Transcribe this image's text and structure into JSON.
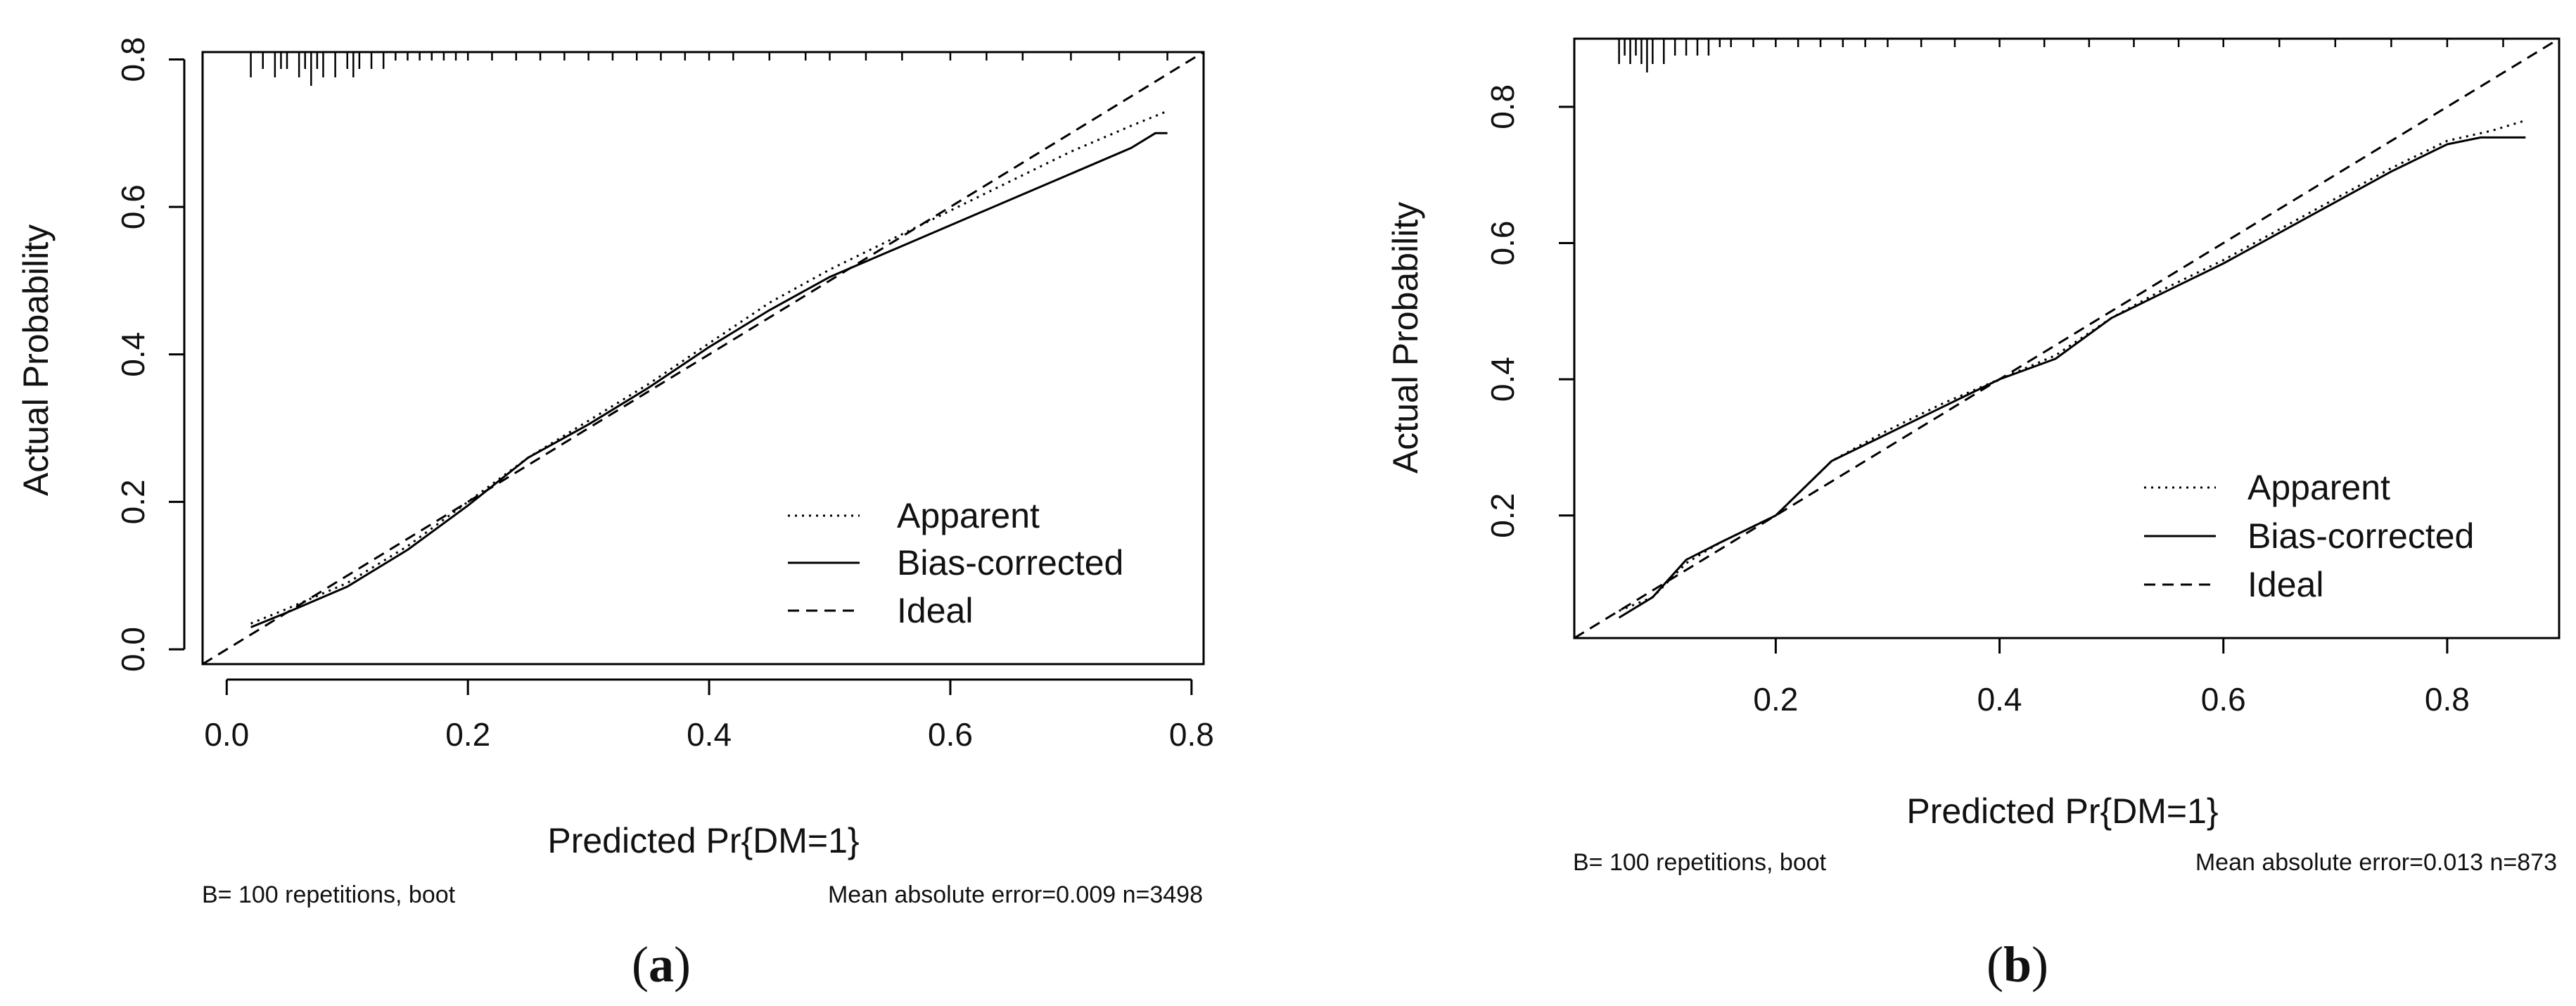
{
  "chart_data": [
    {
      "panel": "a",
      "type": "line",
      "xlabel": "Predicted Pr{DM=1}",
      "ylabel": "Actual Probability",
      "xlim": [
        -0.02,
        0.81
      ],
      "ylim": [
        -0.02,
        0.81
      ],
      "xticks": [
        "0.0",
        "0.2",
        "0.4",
        "0.6",
        "0.8"
      ],
      "yticks": [
        "0.0",
        "0.2",
        "0.4",
        "0.6",
        "0.8"
      ],
      "grid": false,
      "legend_position": "bottom-right",
      "footer_left": "B= 100 repetitions, boot",
      "footer_right": "Mean absolute error=0.009 n=3498",
      "series": [
        {
          "name": "Apparent",
          "style": "dotted",
          "x": [
            0.02,
            0.05,
            0.1,
            0.15,
            0.2,
            0.25,
            0.3,
            0.35,
            0.4,
            0.45,
            0.5,
            0.55,
            0.6,
            0.65,
            0.7,
            0.75,
            0.78
          ],
          "y": [
            0.035,
            0.055,
            0.09,
            0.14,
            0.2,
            0.26,
            0.31,
            0.36,
            0.415,
            0.47,
            0.515,
            0.555,
            0.595,
            0.635,
            0.675,
            0.71,
            0.73
          ]
        },
        {
          "name": "Bias-corrected",
          "style": "solid",
          "x": [
            0.02,
            0.05,
            0.1,
            0.15,
            0.2,
            0.25,
            0.3,
            0.35,
            0.4,
            0.45,
            0.5,
            0.55,
            0.6,
            0.65,
            0.7,
            0.75,
            0.77,
            0.78
          ],
          "y": [
            0.03,
            0.05,
            0.085,
            0.135,
            0.195,
            0.26,
            0.305,
            0.355,
            0.41,
            0.46,
            0.505,
            0.54,
            0.575,
            0.61,
            0.645,
            0.68,
            0.7,
            0.7
          ]
        },
        {
          "name": "Ideal",
          "style": "dashed",
          "x": [
            -0.02,
            0.81
          ],
          "y": [
            -0.02,
            0.81
          ]
        }
      ],
      "rug": [
        0.02,
        0.03,
        0.04,
        0.045,
        0.05,
        0.06,
        0.065,
        0.07,
        0.075,
        0.08,
        0.09,
        0.1,
        0.105,
        0.11,
        0.12,
        0.13,
        0.14,
        0.15,
        0.16,
        0.17,
        0.18,
        0.19,
        0.2,
        0.22,
        0.24,
        0.26,
        0.28,
        0.3,
        0.32,
        0.34,
        0.36,
        0.38,
        0.4,
        0.42,
        0.45,
        0.48,
        0.5,
        0.53,
        0.56,
        0.6,
        0.63,
        0.66,
        0.7,
        0.74,
        0.78
      ],
      "rug_heights": [
        3,
        2,
        3,
        2,
        2,
        3,
        2,
        4,
        2,
        3,
        3,
        2,
        3,
        2,
        2,
        2,
        1,
        1,
        1,
        1,
        1,
        1,
        1,
        1,
        1,
        1,
        1,
        1,
        1,
        1,
        1,
        1,
        1,
        1,
        1,
        1,
        1,
        1,
        1,
        1,
        1,
        1,
        1,
        1,
        1
      ]
    },
    {
      "panel": "b",
      "type": "line",
      "xlabel": "Predicted Pr{DM=1}",
      "ylabel": "Actual Probability",
      "xlim": [
        0.02,
        0.9
      ],
      "ylim": [
        0.02,
        0.9
      ],
      "xticks": [
        "0.2",
        "0.4",
        "0.6",
        "0.8"
      ],
      "yticks": [
        "0.2",
        "0.4",
        "0.6",
        "0.8"
      ],
      "grid": false,
      "legend_position": "bottom-right",
      "footer_left": "B= 100 repetitions, boot",
      "footer_right": "Mean absolute error=0.013 n=873",
      "series": [
        {
          "name": "Apparent",
          "style": "dotted",
          "x": [
            0.06,
            0.09,
            0.12,
            0.15,
            0.2,
            0.25,
            0.3,
            0.35,
            0.4,
            0.45,
            0.5,
            0.55,
            0.6,
            0.65,
            0.7,
            0.75,
            0.8,
            0.84,
            0.87
          ],
          "y": [
            0.06,
            0.08,
            0.13,
            0.16,
            0.2,
            0.28,
            0.325,
            0.365,
            0.4,
            0.435,
            0.49,
            0.535,
            0.575,
            0.62,
            0.665,
            0.71,
            0.75,
            0.765,
            0.78
          ]
        },
        {
          "name": "Bias-corrected",
          "style": "solid",
          "x": [
            0.06,
            0.09,
            0.12,
            0.15,
            0.2,
            0.25,
            0.3,
            0.35,
            0.4,
            0.45,
            0.5,
            0.55,
            0.6,
            0.65,
            0.7,
            0.75,
            0.8,
            0.83,
            0.87
          ],
          "y": [
            0.05,
            0.08,
            0.135,
            0.16,
            0.2,
            0.28,
            0.32,
            0.36,
            0.4,
            0.43,
            0.49,
            0.53,
            0.57,
            0.615,
            0.66,
            0.705,
            0.745,
            0.755,
            0.755
          ]
        },
        {
          "name": "Ideal",
          "style": "dashed",
          "x": [
            0.02,
            0.9
          ],
          "y": [
            0.02,
            0.9
          ]
        }
      ],
      "rug": [
        0.06,
        0.065,
        0.07,
        0.075,
        0.08,
        0.085,
        0.09,
        0.1,
        0.11,
        0.12,
        0.13,
        0.14,
        0.15,
        0.16,
        0.18,
        0.2,
        0.22,
        0.24,
        0.26,
        0.28,
        0.3,
        0.33,
        0.36,
        0.4,
        0.44,
        0.48,
        0.52,
        0.56,
        0.6,
        0.65,
        0.7,
        0.75,
        0.8,
        0.85
      ],
      "rug_heights": [
        3,
        2,
        3,
        2,
        3,
        4,
        3,
        3,
        2,
        2,
        2,
        2,
        1,
        1,
        1,
        1,
        1,
        1,
        1,
        1,
        1,
        1,
        1,
        1,
        1,
        1,
        1,
        1,
        1,
        1,
        1,
        1,
        1,
        1
      ]
    }
  ],
  "panel_tags": [
    "(a)",
    "(b)"
  ]
}
